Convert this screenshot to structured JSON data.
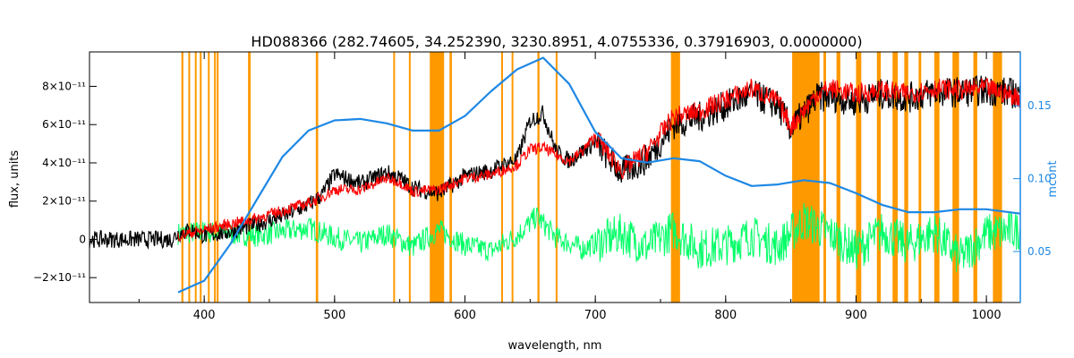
{
  "chart_data": {
    "type": "line",
    "title": "HD088366    (282.74605, 34.252390, 3230.8951, 4.0755336, 0.37916903, 0.0000000)",
    "xlabel": "wavelength, nm",
    "ylabel": "flux, units",
    "y2label": "mcont",
    "xlim": [
      312,
      1026
    ],
    "ylim": [
      -3.3e-11,
      9.8e-11
    ],
    "y2lim": [
      0.015,
      0.187
    ],
    "x_ticks": [
      400,
      500,
      600,
      700,
      800,
      900,
      1000
    ],
    "x_tick_labels": [
      "400",
      "500",
      "600",
      "700",
      "800",
      "900",
      "1000"
    ],
    "y_ticks": [
      -2e-11,
      0,
      2e-11,
      4e-11,
      6e-11,
      8e-11
    ],
    "y_tick_labels": [
      "−2×10⁻¹¹",
      "0",
      "2×10⁻¹¹",
      "4×10⁻¹¹",
      "6×10⁻¹¹",
      "8×10⁻¹¹"
    ],
    "y2_ticks": [
      0.05,
      0.1,
      0.15
    ],
    "y2_tick_labels": [
      "0.05",
      "0.10",
      "0.15"
    ],
    "colors": {
      "observed": "#000000",
      "model": "#ff0000",
      "residual": "#00ff66",
      "mcont": "#1e88e5",
      "masks": "#ff9900",
      "highlight": "#ffff00",
      "y2axis": "#1e88e5"
    },
    "mask_bands": [
      [
        382.5,
        384.0
      ],
      [
        387.8,
        389.2
      ],
      [
        392.8,
        394.0
      ],
      [
        396.6,
        398.0
      ],
      [
        402.8,
        404.0
      ],
      [
        407.5,
        408.8
      ],
      [
        409.6,
        411.0
      ],
      [
        433.6,
        435.6
      ],
      [
        485.6,
        487.4
      ],
      [
        545.0,
        546.2
      ],
      [
        557.0,
        558.0
      ],
      [
        573.0,
        584.0
      ],
      [
        588.2,
        590.0
      ],
      [
        627.8,
        629.0
      ],
      [
        635.8,
        637.0
      ],
      [
        655.6,
        657.2
      ],
      [
        669.6,
        671.0
      ],
      [
        758.0,
        765.0
      ],
      [
        851.0,
        872.0
      ],
      [
        875.0,
        877.0
      ],
      [
        885.0,
        888.0
      ],
      [
        900.0,
        904.0
      ],
      [
        916.0,
        919.0
      ],
      [
        928.0,
        932.0
      ],
      [
        937.0,
        940.0
      ],
      [
        948.0,
        950.0
      ],
      [
        960.0,
        964.0
      ],
      [
        974.0,
        979.0
      ],
      [
        990.0,
        993.0
      ],
      [
        1005.0,
        1012.0
      ]
    ],
    "observed": {
      "x": [
        312,
        375,
        380,
        390,
        400,
        420,
        440,
        460,
        480,
        490,
        500,
        520,
        540,
        550,
        560,
        580,
        600,
        620,
        640,
        650,
        660,
        670,
        680,
        690,
        700,
        720,
        740,
        760,
        780,
        800,
        820,
        840,
        850,
        870,
        880,
        900,
        920,
        940,
        960,
        980,
        1000,
        1026
      ],
      "y": [
        0,
        0,
        3e-12,
        5e-12,
        2e-12,
        4e-12,
        8e-12,
        1.2e-11,
        1.8e-11,
        2.3e-11,
        3.4e-11,
        2.9e-11,
        3.5e-11,
        3.2e-11,
        2.7e-11,
        2.4e-11,
        3.3e-11,
        3.6e-11,
        4.2e-11,
        6.2e-11,
        6.6e-11,
        4.6e-11,
        4.1e-11,
        4.6e-11,
        5.1e-11,
        3.5e-11,
        4.2e-11,
        6e-11,
        6.4e-11,
        7e-11,
        7.6e-11,
        7e-11,
        5.8e-11,
        7.4e-11,
        7.5e-11,
        7.2e-11,
        7.6e-11,
        7.4e-11,
        7.7e-11,
        7.7e-11,
        7.8e-11,
        7.6e-11
      ]
    },
    "model": {
      "x": [
        380,
        400,
        420,
        440,
        460,
        480,
        490,
        500,
        520,
        540,
        550,
        560,
        580,
        600,
        620,
        640,
        650,
        660,
        670,
        680,
        690,
        700,
        720,
        740,
        760,
        780,
        800,
        820,
        840,
        850,
        870,
        880,
        900,
        920,
        940,
        960,
        980,
        1000,
        1026
      ],
      "y": [
        2e-12,
        5e-12,
        8e-12,
        1.1e-11,
        1.5e-11,
        1.9e-11,
        2.2e-11,
        2.6e-11,
        2.6e-11,
        3.2e-11,
        3e-11,
        2.5e-11,
        2.6e-11,
        3.2e-11,
        3.4e-11,
        3.9e-11,
        4.7e-11,
        4.8e-11,
        4.4e-11,
        4.1e-11,
        4.6e-11,
        5.4e-11,
        3.6e-11,
        4.6e-11,
        6.4e-11,
        6.7e-11,
        7.3e-11,
        7.9e-11,
        7.2e-11,
        5.9e-11,
        7.6e-11,
        7.9e-11,
        7.6e-11,
        7.8e-11,
        7.6e-11,
        7.9e-11,
        7.8e-11,
        7.9e-11,
        7.4e-11
      ]
    },
    "residual": {
      "x": [
        380,
        400,
        440,
        480,
        500,
        520,
        540,
        560,
        580,
        600,
        620,
        640,
        655,
        670,
        690,
        700,
        720,
        740,
        760,
        780,
        800,
        820,
        840,
        860,
        880,
        900,
        920,
        940,
        960,
        980,
        1000,
        1026
      ],
      "y": [
        3e-12,
        4e-12,
        2e-12,
        6e-12,
        1e-12,
        -2e-12,
        3e-12,
        -4e-12,
        5e-12,
        -3e-12,
        -6e-12,
        2e-12,
        1.2e-11,
        1e-12,
        -5e-12,
        -2e-12,
        3e-12,
        -4e-12,
        5e-12,
        -5e-12,
        -3e-12,
        2e-12,
        -4e-12,
        1e-11,
        3e-12,
        -6e-12,
        4e-12,
        -3e-12,
        4e-12,
        -1e-11,
        3e-12,
        5e-12
      ]
    },
    "mcont": {
      "x": [
        380,
        400,
        420,
        440,
        460,
        480,
        500,
        520,
        540,
        560,
        580,
        600,
        620,
        640,
        660,
        680,
        700,
        720,
        740,
        760,
        780,
        800,
        820,
        840,
        860,
        880,
        900,
        920,
        940,
        960,
        980,
        1000,
        1026
      ],
      "y": [
        0.022,
        0.03,
        0.055,
        0.085,
        0.115,
        0.133,
        0.14,
        0.141,
        0.138,
        0.133,
        0.133,
        0.143,
        0.16,
        0.175,
        0.183,
        0.165,
        0.132,
        0.114,
        0.111,
        0.114,
        0.112,
        0.102,
        0.095,
        0.096,
        0.099,
        0.097,
        0.09,
        0.082,
        0.077,
        0.077,
        0.079,
        0.079,
        0.076
      ]
    }
  }
}
